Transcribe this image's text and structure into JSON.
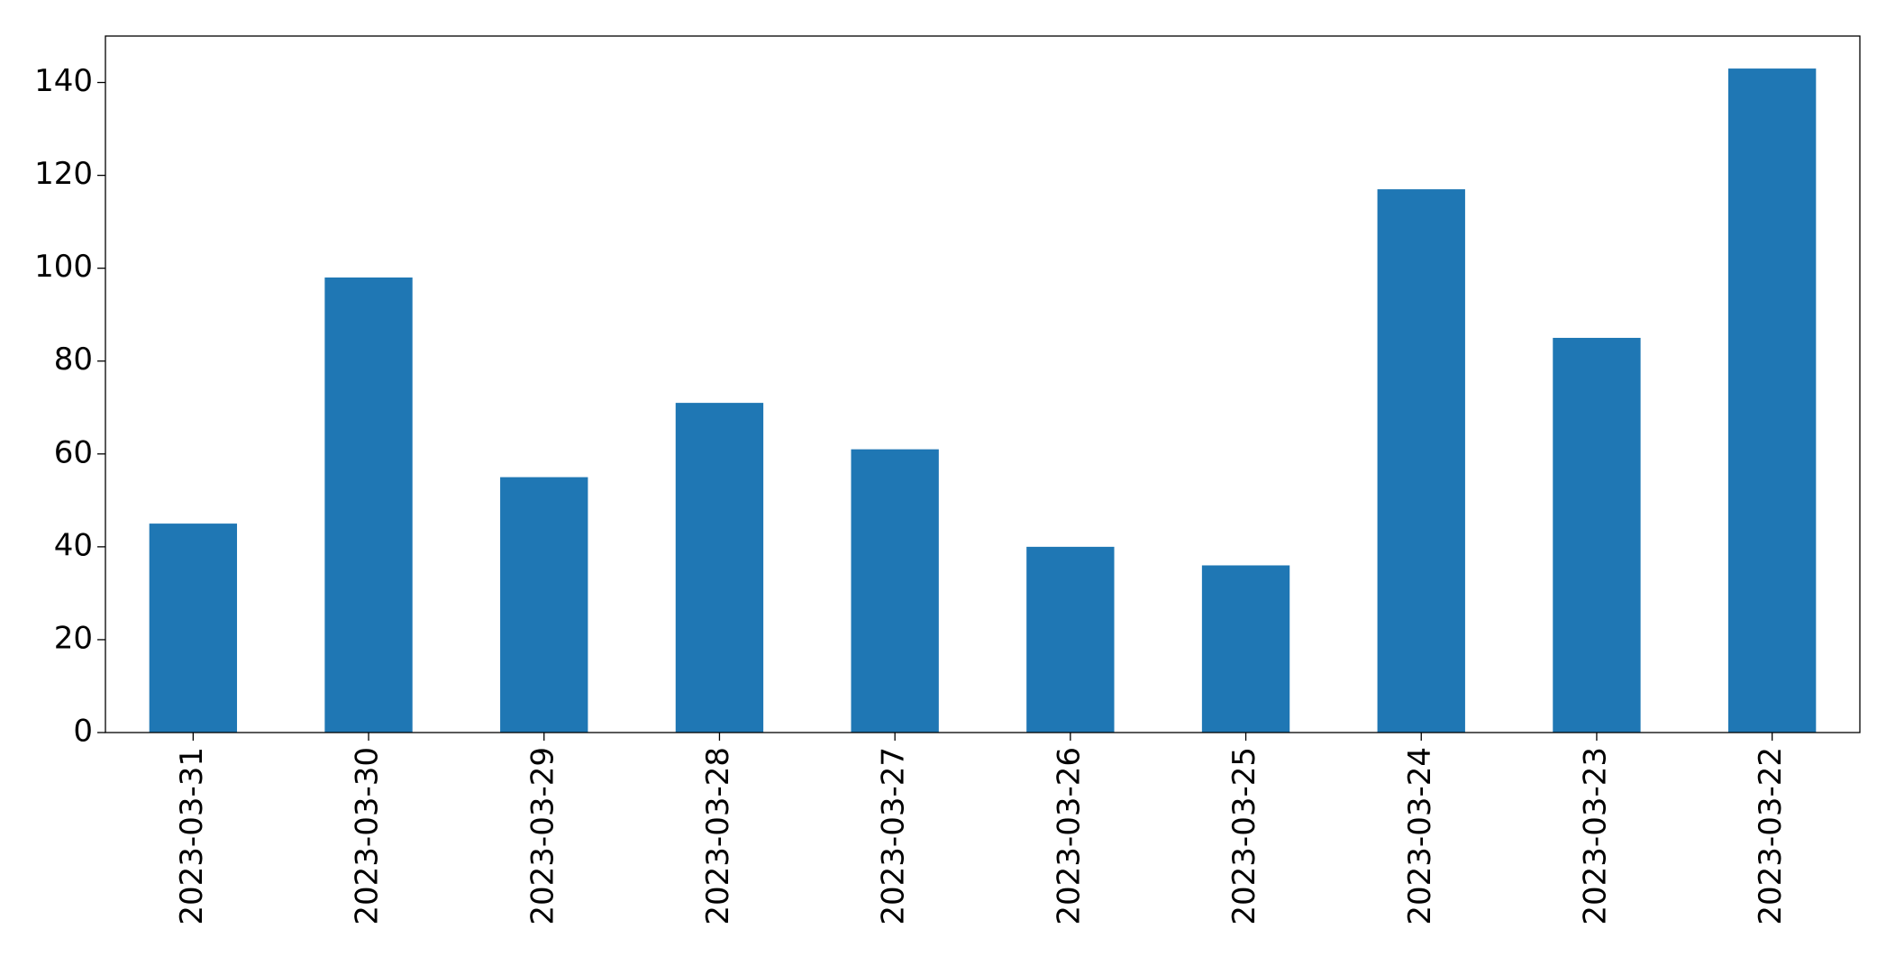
{
  "chart_data": {
    "type": "bar",
    "categories": [
      "2023-03-31",
      "2023-03-30",
      "2023-03-29",
      "2023-03-28",
      "2023-03-27",
      "2023-03-26",
      "2023-03-25",
      "2023-03-24",
      "2023-03-23",
      "2023-03-22"
    ],
    "values": [
      45,
      98,
      55,
      71,
      61,
      40,
      36,
      117,
      85,
      143
    ],
    "color": "#1f77b4",
    "ylim": [
      0,
      150
    ],
    "yticks": [
      0,
      20,
      40,
      60,
      80,
      100,
      120,
      140
    ],
    "grid": false
  }
}
